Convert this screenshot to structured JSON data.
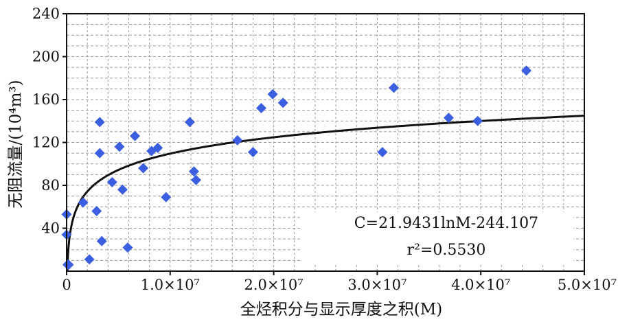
{
  "chart_data": {
    "type": "scatter",
    "xlabel": "全烃积分与显示厚度之积(M)",
    "ylabel": "无阻流量/(10⁴m³)",
    "xlim": [
      0,
      50000000
    ],
    "ylim": [
      0,
      240
    ],
    "x_ticks": [
      0,
      10000000,
      20000000,
      30000000,
      40000000,
      50000000
    ],
    "x_tick_labels": [
      "0",
      "1.0×10⁷",
      "2.0×10⁷",
      "3.0×10⁷",
      "4.0×10⁷",
      "5.0×10⁷"
    ],
    "y_ticks": [
      40,
      80,
      120,
      160,
      200,
      240
    ],
    "y_tick_labels": [
      "40",
      "80",
      "120",
      "160",
      "200",
      "240"
    ],
    "grid": true,
    "points": [
      {
        "x": 0,
        "y": 53
      },
      {
        "x": 0,
        "y": 34
      },
      {
        "x": 100000,
        "y": 6
      },
      {
        "x": 200000,
        "y": 6
      },
      {
        "x": 1600000,
        "y": 64
      },
      {
        "x": 2200000,
        "y": 11
      },
      {
        "x": 2900000,
        "y": 56
      },
      {
        "x": 3200000,
        "y": 139
      },
      {
        "x": 3200000,
        "y": 110
      },
      {
        "x": 3400000,
        "y": 28
      },
      {
        "x": 4400000,
        "y": 83
      },
      {
        "x": 5100000,
        "y": 116
      },
      {
        "x": 5400000,
        "y": 76
      },
      {
        "x": 5900000,
        "y": 22
      },
      {
        "x": 6600000,
        "y": 126
      },
      {
        "x": 7400000,
        "y": 96
      },
      {
        "x": 8200000,
        "y": 112
      },
      {
        "x": 8800000,
        "y": 115
      },
      {
        "x": 9600000,
        "y": 69
      },
      {
        "x": 11900000,
        "y": 139
      },
      {
        "x": 12300000,
        "y": 93
      },
      {
        "x": 12500000,
        "y": 85
      },
      {
        "x": 16500000,
        "y": 122
      },
      {
        "x": 18000000,
        "y": 111
      },
      {
        "x": 18800000,
        "y": 152
      },
      {
        "x": 19900000,
        "y": 165
      },
      {
        "x": 20900000,
        "y": 157
      },
      {
        "x": 30500000,
        "y": 111
      },
      {
        "x": 31600000,
        "y": 171
      },
      {
        "x": 36900000,
        "y": 143
      },
      {
        "x": 39700000,
        "y": 140
      },
      {
        "x": 44400000,
        "y": 187
      }
    ],
    "trendline": {
      "a": 21.9431,
      "b": -244.107,
      "form": "logarithmic"
    },
    "annotations": {
      "equation": "C=21.9431lnM-244.107",
      "r_squared": "r²=0.5530"
    },
    "colors": {
      "points": "#3b5fe0",
      "trendline": "#111111",
      "grid": "#9a9a9a"
    }
  }
}
